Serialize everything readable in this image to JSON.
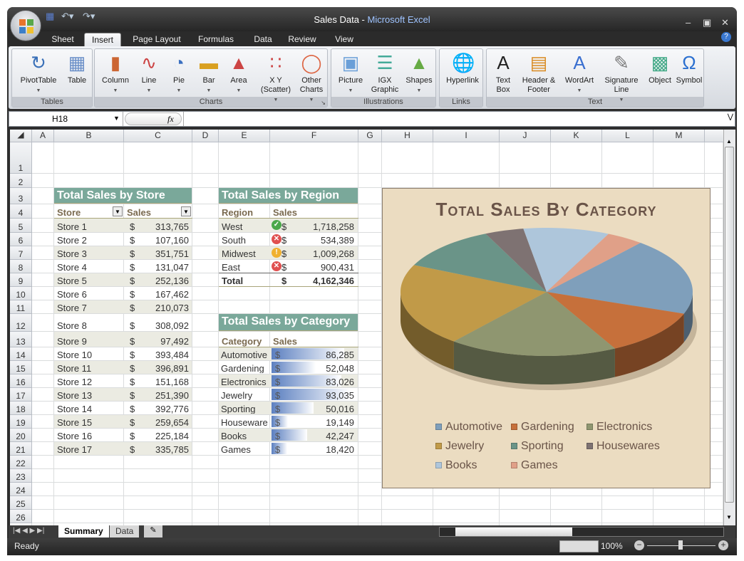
{
  "window": {
    "title": "Sales Data",
    "app": "Microsoft Excel",
    "separator": " - "
  },
  "qat": {
    "save": "save-icon",
    "undo": "undo-icon",
    "redo": "redo-icon"
  },
  "tabs": [
    "Sheet",
    "Insert",
    "Page Layout",
    "Formulas",
    "Data",
    "Review",
    "View"
  ],
  "active_tab": "Insert",
  "ribbon": {
    "groups": [
      {
        "label": "Tables",
        "buttons": [
          {
            "label": "PivotTable",
            "dropdown": true,
            "icon": "pivottable-icon"
          },
          {
            "label": "Table",
            "icon": "table-icon"
          }
        ]
      },
      {
        "label": "Charts",
        "buttons": [
          {
            "label": "Column",
            "dropdown": true,
            "icon": "column-chart-icon"
          },
          {
            "label": "Line",
            "dropdown": true,
            "icon": "line-chart-icon"
          },
          {
            "label": "Pie",
            "dropdown": true,
            "icon": "pie-chart-icon"
          },
          {
            "label": "Bar",
            "dropdown": true,
            "icon": "bar-chart-icon"
          },
          {
            "label": "Area",
            "dropdown": true,
            "icon": "area-chart-icon"
          },
          {
            "label": "X Y (Scatter)",
            "dropdown": true,
            "icon": "scatter-chart-icon"
          },
          {
            "label": "Other Charts",
            "dropdown": true,
            "icon": "other-charts-icon"
          }
        ]
      },
      {
        "label": "Illustrations",
        "buttons": [
          {
            "label": "Picture",
            "dropdown": true,
            "icon": "picture-icon"
          },
          {
            "label": "IGX Graphic",
            "icon": "igx-graphic-icon"
          },
          {
            "label": "Shapes",
            "dropdown": true,
            "icon": "shapes-icon"
          }
        ]
      },
      {
        "label": "Links",
        "buttons": [
          {
            "label": "Hyperlink",
            "icon": "hyperlink-icon"
          }
        ]
      },
      {
        "label": "Text",
        "buttons": [
          {
            "label": "Text Box",
            "icon": "text-box-icon"
          },
          {
            "label": "Header & Footer",
            "icon": "header-footer-icon"
          },
          {
            "label": "WordArt",
            "dropdown": true,
            "icon": "wordart-icon"
          },
          {
            "label": "Signature Line",
            "dropdown": true,
            "icon": "signature-line-icon"
          },
          {
            "label": "Object",
            "icon": "object-icon"
          },
          {
            "label": "Symbol",
            "icon": "symbol-icon"
          }
        ]
      }
    ]
  },
  "formula_bar": {
    "name_box": "H18",
    "fx": "fx",
    "formula": ""
  },
  "columns": [
    "A",
    "B",
    "C",
    "D",
    "E",
    "F",
    "G",
    "H",
    "I",
    "J",
    "K",
    "L",
    "M"
  ],
  "rows": [
    "1",
    "2",
    "3",
    "4",
    "5",
    "6",
    "7",
    "8",
    "9",
    "10",
    "11",
    "12",
    "13",
    "14",
    "15",
    "16",
    "17",
    "18",
    "19",
    "20",
    "21",
    "22",
    "23",
    "24",
    "25",
    "26"
  ],
  "store_table": {
    "title": "Total Sales by Store",
    "headers": [
      "Store",
      "Sales"
    ],
    "currency": "$",
    "rows": [
      [
        "Store 1",
        "313,765"
      ],
      [
        "Store 2",
        "107,160"
      ],
      [
        "Store 3",
        "351,751"
      ],
      [
        "Store 4",
        "131,047"
      ],
      [
        "Store 5",
        "252,136"
      ],
      [
        "Store 6",
        "167,462"
      ],
      [
        "Store 7",
        "210,073"
      ],
      [
        "Store 8",
        "308,092"
      ],
      [
        "Store 9",
        "97,492"
      ],
      [
        "Store 10",
        "393,484"
      ],
      [
        "Store 11",
        "396,891"
      ],
      [
        "Store 12",
        "151,168"
      ],
      [
        "Store 13",
        "251,390"
      ],
      [
        "Store 14",
        "392,776"
      ],
      [
        "Store 15",
        "259,654"
      ],
      [
        "Store 16",
        "225,184"
      ],
      [
        "Store 17",
        "335,785"
      ]
    ]
  },
  "region_table": {
    "title": "Total Sales by Region",
    "headers": [
      "Region",
      "Sales"
    ],
    "currency": "$",
    "rows": [
      {
        "region": "West",
        "value": "1,718,258",
        "status": "green-check"
      },
      {
        "region": "South",
        "value": "534,389",
        "status": "red-x"
      },
      {
        "region": "Midwest",
        "value": "1,009,268",
        "status": "yellow-exclamation"
      },
      {
        "region": "East",
        "value": "900,431",
        "status": "red-x"
      }
    ],
    "total": {
      "label": "Total",
      "value": "4,162,346"
    }
  },
  "category_table": {
    "title": "Total Sales by Category",
    "headers": [
      "Category",
      "Sales"
    ],
    "currency": "$",
    "rows": [
      [
        "Automotive",
        "86,285",
        86285
      ],
      [
        "Gardening",
        "52,048",
        52048
      ],
      [
        "Electronics",
        "83,026",
        83026
      ],
      [
        "Jewelry",
        "93,035",
        93035
      ],
      [
        "Sporting",
        "50,016",
        50016
      ],
      [
        "Houseware",
        "19,149",
        19149
      ],
      [
        "Books",
        "42,247",
        42247
      ],
      [
        "Games",
        "18,420",
        18420
      ]
    ],
    "databar_color": "#5b7fc0"
  },
  "chart_data": {
    "type": "pie",
    "style": "3d-pie",
    "title": "Total Sales By Category",
    "legend": "bottom",
    "categories": [
      "Automotive",
      "Gardening",
      "Electronics",
      "Jewelry",
      "Sporting",
      "Housewares",
      "Books",
      "Games"
    ],
    "values": [
      86285,
      52048,
      83026,
      93035,
      50016,
      19149,
      42247,
      18420
    ],
    "colors": [
      "#7f9fbb",
      "#c6703b",
      "#8f9670",
      "#c19a48",
      "#6a9488",
      "#7e7272",
      "#aec6db",
      "#e0a088"
    ],
    "background": "#ebdcc1"
  },
  "sheet_tabs": [
    "Summary",
    "Data"
  ],
  "active_sheet": "Summary",
  "status": {
    "text": "Ready",
    "zoom": "100%"
  }
}
